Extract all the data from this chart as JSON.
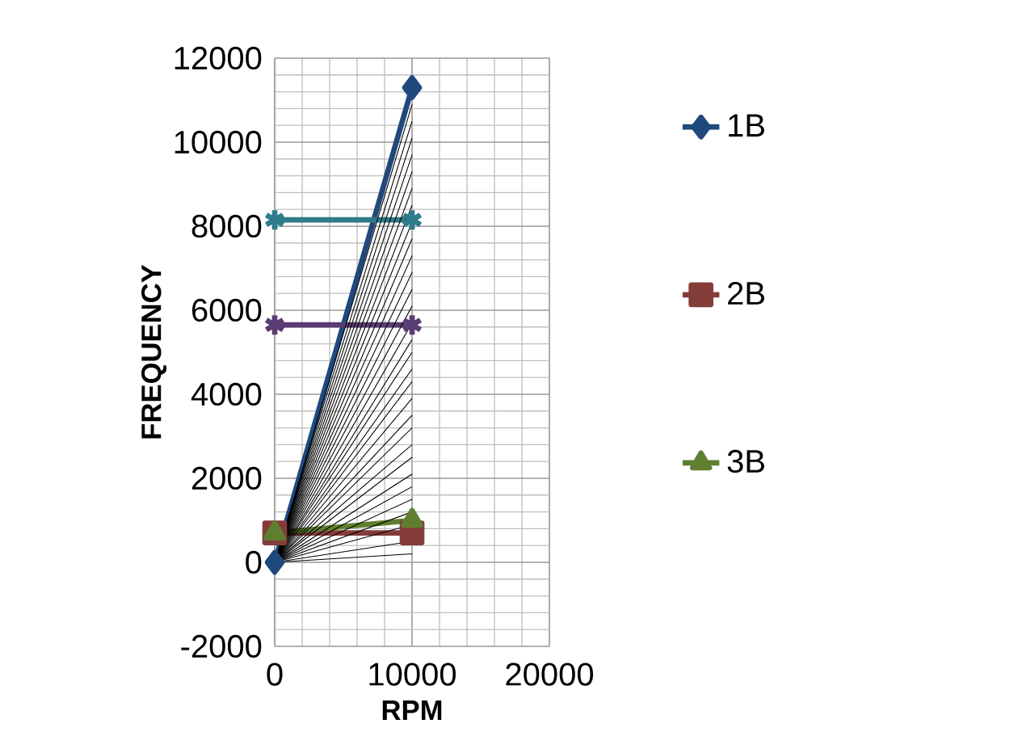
{
  "chart_data": {
    "type": "line",
    "xlabel": "RPM",
    "ylabel": "FREQUENCY",
    "xlim": [
      0,
      20000
    ],
    "xticks": [
      0,
      10000,
      20000
    ],
    "ylim": [
      -2000,
      12000
    ],
    "yticks": [
      -2000,
      0,
      2000,
      4000,
      6000,
      8000,
      10000,
      12000
    ],
    "grid": true,
    "legend": "right",
    "marker": "none",
    "x": [
      0,
      10000
    ],
    "series": [
      {
        "name": "1B",
        "color": "#1f497d",
        "marker": "diamond",
        "values": [
          0,
          11300
        ]
      },
      {
        "name": "2B",
        "color": "#843c39",
        "marker": "square",
        "values": [
          700,
          700
        ]
      },
      {
        "name": "3B",
        "color": "#5f7f2f",
        "marker": "triangle",
        "values": [
          700,
          1000
        ]
      },
      {
        "color": "#2e7b8a",
        "marker": "cross",
        "values": [
          8150,
          8150
        ]
      },
      {
        "color": "#5a3d72",
        "marker": "cross",
        "values": [
          5650,
          5650
        ]
      },
      {
        "color": "#000000",
        "values": [
          0,
          200
        ]
      },
      {
        "color": "#000000",
        "values": [
          0,
          500
        ]
      },
      {
        "color": "#000000",
        "values": [
          0,
          900
        ]
      },
      {
        "color": "#000000",
        "values": [
          0,
          1200
        ]
      },
      {
        "color": "#000000",
        "values": [
          0,
          1500
        ]
      },
      {
        "color": "#000000",
        "values": [
          0,
          1800
        ]
      },
      {
        "color": "#000000",
        "values": [
          0,
          2100
        ]
      },
      {
        "color": "#000000",
        "values": [
          0,
          2500
        ]
      },
      {
        "color": "#000000",
        "values": [
          0,
          2800
        ]
      },
      {
        "color": "#000000",
        "values": [
          0,
          3200
        ]
      },
      {
        "color": "#000000",
        "values": [
          0,
          3500
        ]
      },
      {
        "color": "#000000",
        "values": [
          0,
          3900
        ]
      },
      {
        "color": "#000000",
        "values": [
          0,
          4300
        ]
      },
      {
        "color": "#000000",
        "values": [
          0,
          4600
        ]
      },
      {
        "color": "#000000",
        "values": [
          0,
          5000
        ]
      },
      {
        "color": "#000000",
        "values": [
          0,
          5300
        ]
      },
      {
        "color": "#000000",
        "values": [
          0,
          5700
        ]
      },
      {
        "color": "#000000",
        "values": [
          0,
          6100
        ]
      },
      {
        "color": "#000000",
        "values": [
          0,
          6500
        ]
      },
      {
        "color": "#000000",
        "values": [
          0,
          6900
        ]
      },
      {
        "color": "#000000",
        "values": [
          0,
          7300
        ]
      },
      {
        "color": "#000000",
        "values": [
          0,
          7700
        ]
      },
      {
        "color": "#000000",
        "values": [
          0,
          8100
        ]
      },
      {
        "color": "#000000",
        "values": [
          0,
          8500
        ]
      },
      {
        "color": "#000000",
        "values": [
          0,
          8900
        ]
      },
      {
        "color": "#000000",
        "values": [
          0,
          9300
        ]
      },
      {
        "color": "#000000",
        "values": [
          0,
          9700
        ]
      },
      {
        "color": "#000000",
        "values": [
          0,
          10100
        ]
      },
      {
        "color": "#000000",
        "values": [
          0,
          10500
        ]
      },
      {
        "color": "#000000",
        "values": [
          0,
          10900
        ]
      }
    ]
  }
}
